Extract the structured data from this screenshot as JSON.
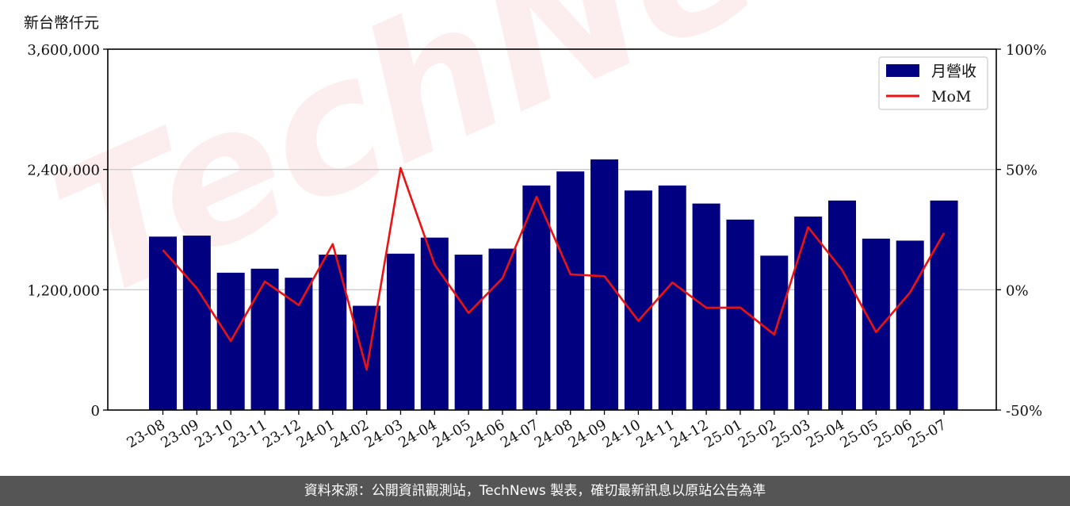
{
  "chart_data": {
    "type": "bar",
    "unit_label": "新台幣仟元",
    "categories": [
      "23-08",
      "23-09",
      "23-10",
      "23-11",
      "23-12",
      "24-01",
      "24-02",
      "24-03",
      "24-04",
      "24-05",
      "24-06",
      "24-07",
      "24-08",
      "24-09",
      "24-10",
      "24-11",
      "24-12",
      "25-01",
      "25-02",
      "25-03",
      "25-04",
      "25-05",
      "25-06",
      "25-07"
    ],
    "series": [
      {
        "name": "月營收",
        "axis": "left",
        "type": "bar",
        "color": "#000080",
        "values": [
          1730000,
          1740000,
          1370000,
          1410000,
          1320000,
          1550000,
          1040000,
          1560000,
          1720000,
          1550000,
          1610000,
          2240000,
          2380000,
          2500000,
          2190000,
          2240000,
          2060000,
          1900000,
          1540000,
          1930000,
          2090000,
          1710000,
          1690000,
          2090000
        ]
      },
      {
        "name": "MoM",
        "axis": "right",
        "type": "line",
        "color": "#ee1111",
        "values": [
          16.5,
          0.6,
          -21.3,
          3.4,
          -6.4,
          19.0,
          -33.2,
          50.6,
          10.5,
          -9.6,
          4.8,
          38.6,
          6.4,
          5.6,
          -12.9,
          3.0,
          -7.5,
          -7.4,
          -18.6,
          26.0,
          8.2,
          -17.6,
          -1.1,
          23.6
        ]
      }
    ],
    "left_axis": {
      "ylim": [
        0,
        3600000
      ],
      "ticks": [
        0,
        1200000,
        2400000,
        3600000
      ],
      "tick_labels": [
        "0",
        "1,200,000",
        "2,400,000",
        "3,600,000"
      ]
    },
    "right_axis": {
      "ylim": [
        -50,
        100
      ],
      "ticks": [
        -50,
        0,
        50,
        100
      ],
      "tick_labels": [
        "-50%",
        "0%",
        "50%",
        "100%"
      ]
    },
    "grid": "horizontal",
    "legend_position": "top-right",
    "watermark": "TechNews"
  },
  "footer": {
    "text": "資料來源：公開資訊觀測站，TechNews 製表，確切最新訊息以原站公告為準"
  }
}
